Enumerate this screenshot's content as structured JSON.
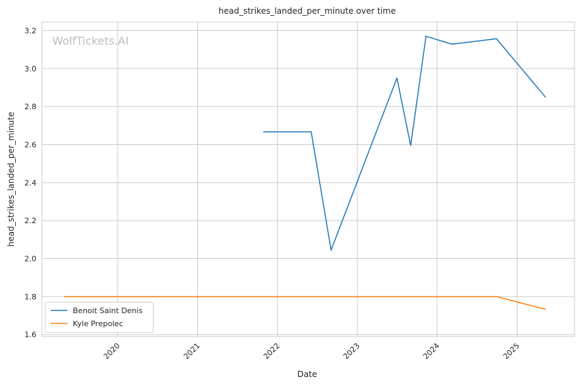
{
  "chart_data": {
    "type": "line",
    "title": "head_strikes_landed_per_minute over time",
    "xlabel": "Date",
    "ylabel": "head_strikes_landed_per_minute",
    "watermark": "WolfTickets.AI",
    "xlim": [
      "2019-01-20",
      "2025-09-20"
    ],
    "ylim": [
      1.59,
      3.245
    ],
    "x_ticks": [
      "2020",
      "2021",
      "2022",
      "2023",
      "2024",
      "2025"
    ],
    "y_ticks": [
      "1.6",
      "1.8",
      "2.0",
      "2.2",
      "2.4",
      "2.6",
      "2.8",
      "3.0",
      "3.2"
    ],
    "grid": true,
    "legend_position": "lower-left",
    "series": [
      {
        "name": "Benoit Saint Denis",
        "color": "#1f77b4",
        "x": [
          "2021-10-30",
          "2022-06-04",
          "2022-09-03",
          "2023-07-01",
          "2023-09-02",
          "2023-11-11",
          "2024-03-09",
          "2024-09-28",
          "2025-05-10"
        ],
        "y": [
          2.667,
          2.667,
          2.045,
          2.95,
          2.595,
          3.17,
          3.128,
          3.157,
          2.85
        ]
      },
      {
        "name": "Kyle Prepolec",
        "color": "#ff7f0e",
        "x": [
          "2019-05-04",
          "2024-09-28",
          "2025-05-10"
        ],
        "y": [
          1.8,
          1.8,
          1.733
        ]
      }
    ]
  }
}
